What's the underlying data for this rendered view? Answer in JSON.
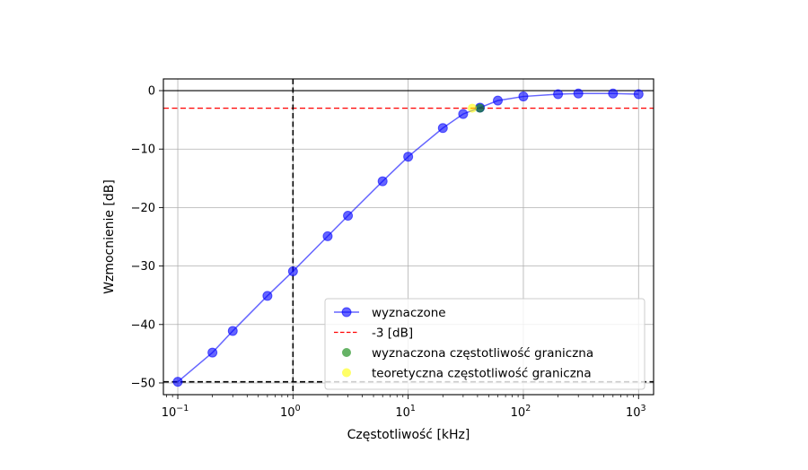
{
  "chart_data": {
    "type": "line",
    "xlabel": "Częstotliwość [kHz]",
    "ylabel": "Wzmocnienie [dB]",
    "x_scale": "log",
    "xlim": [
      0.075,
      1350
    ],
    "ylim": [
      -52,
      2
    ],
    "grid": true,
    "legend_position": "lower-right",
    "x_ticks": [
      {
        "value": 0.1,
        "base": "10",
        "exp": "−1"
      },
      {
        "value": 1,
        "base": "10",
        "exp": "0"
      },
      {
        "value": 10,
        "base": "10",
        "exp": "1"
      },
      {
        "value": 100,
        "base": "10",
        "exp": "2"
      },
      {
        "value": 1000,
        "base": "10",
        "exp": "3"
      }
    ],
    "y_ticks": [
      {
        "value": 0,
        "label": "0"
      },
      {
        "value": -10,
        "label": "−10"
      },
      {
        "value": -20,
        "label": "−20"
      },
      {
        "value": -30,
        "label": "−30"
      },
      {
        "value": -40,
        "label": "−40"
      },
      {
        "value": -50,
        "label": "−50"
      }
    ],
    "series": [
      {
        "name": "wyznaczone",
        "kind": "line-markers",
        "color": "#0000ff",
        "x": [
          0.1,
          0.2,
          0.3,
          0.6,
          1,
          2,
          3,
          6,
          10,
          20,
          30,
          42,
          60,
          100,
          200,
          300,
          600,
          1000
        ],
        "y": [
          -49.8,
          -44.8,
          -41.1,
          -35.1,
          -30.9,
          -24.9,
          -21.4,
          -15.5,
          -11.3,
          -6.4,
          -4.0,
          -2.9,
          -1.7,
          -1.0,
          -0.6,
          -0.5,
          -0.5,
          -0.6
        ]
      }
    ],
    "reference_lines": [
      {
        "name": "-3 [dB]",
        "orientation": "horizontal",
        "value": -3,
        "color": "#ff0000",
        "style": "dashed",
        "in_legend": true
      },
      {
        "orientation": "vertical",
        "value": 1,
        "color": "#000000",
        "style": "dashed",
        "in_legend": false
      },
      {
        "orientation": "horizontal",
        "value": -49.8,
        "color": "#000000",
        "style": "dashed",
        "in_legend": false
      },
      {
        "orientation": "horizontal",
        "value": 0,
        "color": "#000000",
        "style": "solid",
        "in_legend": false
      }
    ],
    "points": [
      {
        "name": "wyznaczona częstotliwość graniczna",
        "x": 42,
        "y": -3,
        "color": "#008000"
      },
      {
        "name": "teoretyczna częstotliwość graniczna",
        "x": 36,
        "y": -3,
        "color": "#ffff00"
      }
    ]
  }
}
